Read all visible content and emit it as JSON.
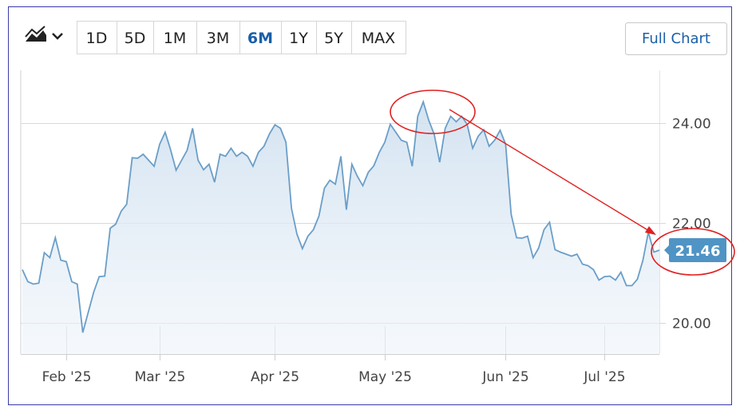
{
  "toolbar": {
    "ranges": [
      "1D",
      "5D",
      "1M",
      "3M",
      "6M",
      "1Y",
      "5Y",
      "MAX"
    ],
    "selected": "6M",
    "full_chart": "Full Chart"
  },
  "chart_data": {
    "type": "area",
    "color": "#6a9ec8",
    "categories": [
      null,
      null,
      null,
      null,
      null,
      null,
      null,
      null,
      "Feb '25",
      null,
      null,
      null,
      null,
      null,
      null,
      null,
      null,
      null,
      null,
      null,
      null,
      null,
      null,
      null,
      null,
      "Mar '25",
      null,
      null,
      null,
      null,
      null,
      null,
      null,
      null,
      null,
      null,
      null,
      null,
      null,
      null,
      null,
      null,
      null,
      null,
      null,
      null,
      "Apr '25",
      null,
      null,
      null,
      null,
      null,
      null,
      null,
      null,
      null,
      null,
      null,
      null,
      null,
      null,
      null,
      null,
      null,
      null,
      null,
      "May '25",
      null,
      null,
      null,
      null,
      null,
      null,
      null,
      null,
      null,
      null,
      null,
      null,
      null,
      null,
      null,
      null,
      null,
      null,
      null,
      null,
      null,
      "Jun '25",
      null,
      null,
      null,
      null,
      null,
      null,
      null,
      null,
      null,
      null,
      null,
      null,
      null,
      null,
      null,
      null,
      null,
      "Jul '25",
      null,
      null,
      null,
      null,
      null,
      null,
      null,
      null,
      null,
      null
    ],
    "values": [
      21.07,
      20.83,
      20.78,
      20.8,
      21.41,
      21.31,
      21.71,
      21.26,
      21.23,
      20.83,
      20.78,
      19.81,
      20.22,
      20.62,
      20.93,
      20.94,
      21.9,
      21.98,
      22.24,
      22.38,
      23.31,
      23.3,
      23.38,
      23.26,
      23.14,
      23.58,
      23.82,
      23.47,
      23.06,
      23.26,
      23.46,
      23.9,
      23.26,
      23.07,
      23.18,
      22.82,
      23.38,
      23.34,
      23.5,
      23.34,
      23.42,
      23.34,
      23.14,
      23.42,
      23.54,
      23.79,
      23.97,
      23.9,
      23.62,
      22.3,
      21.78,
      21.49,
      21.74,
      21.87,
      22.14,
      22.7,
      22.86,
      22.78,
      23.34,
      22.27,
      23.18,
      22.94,
      22.75,
      23.02,
      23.15,
      23.42,
      23.62,
      23.98,
      23.82,
      23.66,
      23.62,
      23.14,
      24.14,
      24.43,
      24.06,
      23.78,
      23.22,
      23.9,
      24.14,
      24.03,
      24.14,
      23.98,
      23.5,
      23.74,
      23.87,
      23.54,
      23.66,
      23.86,
      23.58,
      22.18,
      21.71,
      21.7,
      21.74,
      21.31,
      21.5,
      21.87,
      22.02,
      21.47,
      21.42,
      21.38,
      21.34,
      21.38,
      21.18,
      21.15,
      21.07,
      20.86,
      20.93,
      20.94,
      20.86,
      21.02,
      20.75,
      20.75,
      20.88,
      21.26,
      21.82,
      21.42,
      21.46
    ],
    "ylim": [
      19.38,
      25.06
    ],
    "yticks": [
      {
        "value": 20,
        "label": "20.00"
      },
      {
        "value": 22,
        "label": "22.00"
      },
      {
        "value": 24,
        "label": "24.00"
      }
    ],
    "grid": true
  }
}
